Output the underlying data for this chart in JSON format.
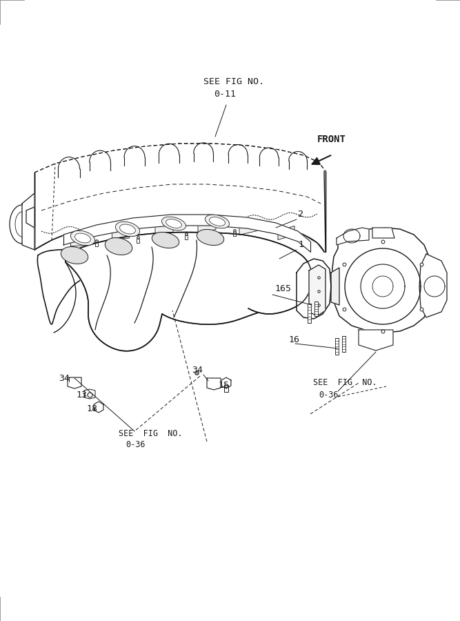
{
  "bg_color": "#ffffff",
  "line_color": "#1a1a1a",
  "border_color": "#888888",
  "fig_width": 6.67,
  "fig_height": 9.0,
  "dpi": 100,
  "text": {
    "see_fig_11_line1": "SEE FIG NO.",
    "see_fig_11_line2": "0-11",
    "front": "FRONT",
    "part_2": "2",
    "part_1": "1",
    "part_165": "165",
    "part_16": "16",
    "part_34a": "34",
    "part_13": "13",
    "part_18": "18",
    "part_34b": "34",
    "part_15": "15",
    "see_fig_36a_line1": "SEE  FIG  NO.",
    "see_fig_36a_line2": "0-36",
    "see_fig_36b_line1": "SEE  FIG  NO.",
    "see_fig_36b_line2": "0-36"
  }
}
